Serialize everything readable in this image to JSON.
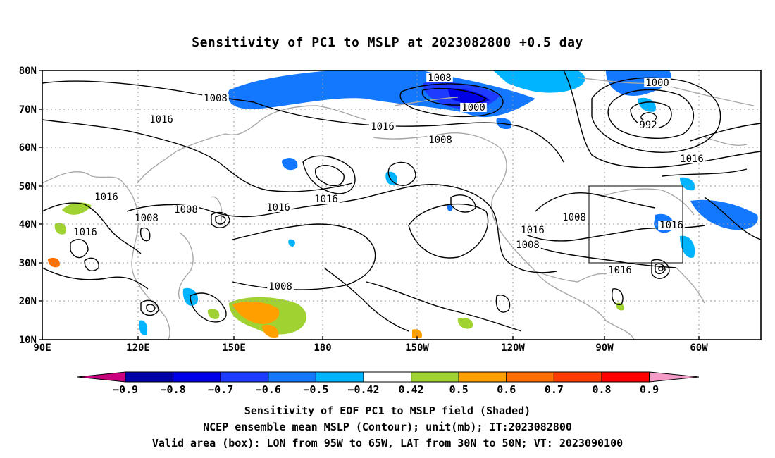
{
  "title": "Sensitivity of PC1 to MSLP at 2023082800 +0.5 day",
  "map": {
    "lat_labels": [
      "80N",
      "70N",
      "60N",
      "50N",
      "40N",
      "30N",
      "20N",
      "10N"
    ],
    "lon_labels": [
      "90E",
      "120E",
      "150E",
      "180",
      "150W",
      "120W",
      "90W",
      "60W"
    ],
    "valid_box": {
      "lon_from": "95W",
      "lon_to": "65W",
      "lat_from": "30N",
      "lat_to": "50N"
    },
    "contour_labels": [
      "1008",
      "1000",
      "1000",
      "992",
      "1008",
      "1016",
      "1016",
      "1008",
      "1016",
      "1016",
      "1008",
      "1016",
      "1016",
      "1008",
      "1016",
      "1008",
      "1016",
      "1016",
      "1008",
      "1016",
      "1008"
    ]
  },
  "colorbar": {
    "labels": [
      "-0.9",
      "-0.8",
      "-0.7",
      "-0.6",
      "-0.5",
      "-0.42",
      "0.42",
      "0.5",
      "0.6",
      "0.7",
      "0.8",
      "0.9"
    ],
    "colors": [
      "#c8007d",
      "#0000a8",
      "#0000e6",
      "#1e3cff",
      "#1478ff",
      "#00b4ff",
      "#ffffff",
      "#a0d232",
      "#ffa000",
      "#ff6e00",
      "#ff3c00",
      "#ff0000",
      "#f59bc8"
    ]
  },
  "captions": [
    "Sensitivity of EOF PC1 to MSLP field (Shaded)",
    "NCEP ensemble mean MSLP (Contour); unit(mb); IT:2023082800",
    "Valid area (box): LON from 95W to 65W, LAT from 30N to 50N; VT: 2023090100"
  ]
}
